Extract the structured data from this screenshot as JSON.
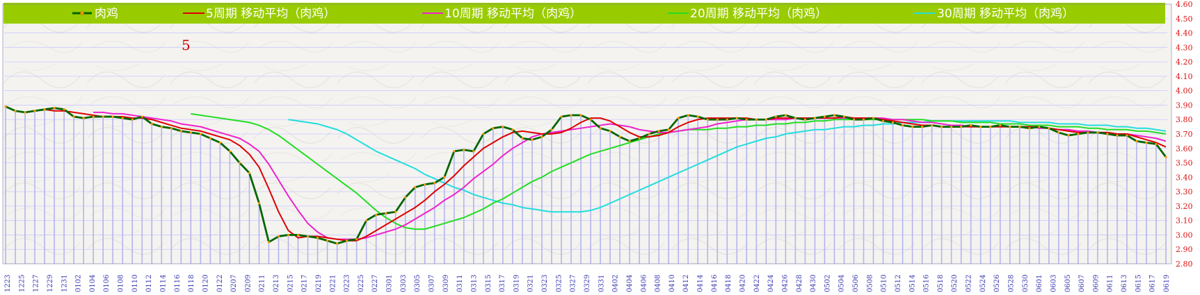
{
  "chart_data": {
    "type": "line",
    "title": "",
    "xlabel": "",
    "ylabel": "",
    "ylim": [
      2.8,
      4.6
    ],
    "yticks": [
      "2.80",
      "2.90",
      "3.00",
      "3.10",
      "3.20",
      "3.30",
      "3.40",
      "3.50",
      "3.60",
      "3.70",
      "3.80",
      "3.90",
      "4.00",
      "4.10",
      "4.20",
      "4.30",
      "4.40",
      "4.50",
      "4.60"
    ],
    "x_labels": [
      "1223",
      "1225",
      "1227",
      "1229",
      "1231",
      "0102",
      "0104",
      "0106",
      "0108",
      "0110",
      "0112",
      "0114",
      "0116",
      "0118",
      "0120",
      "0122",
      "0207",
      "0209",
      "0211",
      "0213",
      "0215",
      "0217",
      "0219",
      "0221",
      "0223",
      "0225",
      "0227",
      "0301",
      "0303",
      "0305",
      "0307",
      "0309",
      "0311",
      "0313",
      "0315",
      "0317",
      "0319",
      "0321",
      "0323",
      "0325",
      "0327",
      "0329",
      "0331",
      "0402",
      "0404",
      "0406",
      "0408",
      "0410",
      "0412",
      "0414",
      "0416",
      "0418",
      "0420",
      "0422",
      "0424",
      "0426",
      "0428",
      "0430",
      "0502",
      "0504",
      "0506",
      "0508",
      "0510",
      "0512",
      "0514",
      "0516",
      "0518",
      "0520",
      "0522",
      "0524",
      "0526",
      "0528",
      "0530",
      "0601",
      "0603",
      "0605",
      "0607",
      "0609",
      "0611",
      "0613",
      "0615",
      "0617",
      "0619"
    ],
    "annotation": "5",
    "legend_position": "top",
    "colors": {
      "legend_bg": "#99cc00",
      "price": "#006600",
      "price_marker": "#ff9900",
      "ma5": "#dd0000",
      "ma10": "#ee22cc",
      "ma20": "#22dd22",
      "ma30": "#22dddd",
      "grid": "#c9c9ff",
      "tick_y": "#dd1111",
      "tick_x": "#3a3ab0"
    },
    "series": [
      {
        "name": "肉鸡",
        "key": "price",
        "values": [
          3.89,
          3.86,
          3.85,
          3.86,
          3.87,
          3.88,
          3.87,
          3.82,
          3.81,
          3.82,
          3.82,
          3.82,
          3.81,
          3.8,
          3.82,
          3.77,
          3.75,
          3.74,
          3.72,
          3.71,
          3.7,
          3.67,
          3.64,
          3.58,
          3.5,
          3.43,
          3.22,
          2.95,
          2.99,
          3.0,
          3.0,
          2.99,
          2.98,
          2.96,
          2.94,
          2.96,
          2.97,
          3.1,
          3.14,
          3.15,
          3.16,
          3.26,
          3.33,
          3.35,
          3.36,
          3.4,
          3.58,
          3.59,
          3.58,
          3.7,
          3.74,
          3.75,
          3.73,
          3.67,
          3.66,
          3.68,
          3.73,
          3.82,
          3.83,
          3.83,
          3.8,
          3.74,
          3.72,
          3.68,
          3.65,
          3.67,
          3.7,
          3.72,
          3.73,
          3.81,
          3.83,
          3.82,
          3.8,
          3.8,
          3.8,
          3.81,
          3.8,
          3.8,
          3.8,
          3.82,
          3.83,
          3.81,
          3.8,
          3.81,
          3.82,
          3.83,
          3.82,
          3.8,
          3.8,
          3.81,
          3.79,
          3.78,
          3.76,
          3.75,
          3.75,
          3.76,
          3.75,
          3.75,
          3.75,
          3.76,
          3.75,
          3.75,
          3.76,
          3.75,
          3.75,
          3.74,
          3.75,
          3.74,
          3.71,
          3.69,
          3.7,
          3.71,
          3.71,
          3.7,
          3.69,
          3.69,
          3.65,
          3.64,
          3.63,
          3.54
        ]
      },
      {
        "name": "5周期 移动平均（肉鸡）",
        "key": "ma5",
        "values": [
          null,
          null,
          null,
          null,
          3.87,
          3.86,
          3.86,
          3.85,
          3.84,
          3.83,
          3.82,
          3.82,
          3.82,
          3.81,
          3.81,
          3.8,
          3.78,
          3.76,
          3.74,
          3.73,
          3.72,
          3.7,
          3.68,
          3.66,
          3.62,
          3.56,
          3.47,
          3.32,
          3.16,
          3.03,
          2.98,
          2.99,
          2.99,
          2.98,
          2.97,
          2.96,
          2.96,
          2.99,
          3.03,
          3.07,
          3.11,
          3.15,
          3.19,
          3.24,
          3.3,
          3.35,
          3.41,
          3.48,
          3.54,
          3.6,
          3.64,
          3.68,
          3.71,
          3.72,
          3.71,
          3.7,
          3.7,
          3.71,
          3.74,
          3.78,
          3.81,
          3.81,
          3.79,
          3.75,
          3.71,
          3.68,
          3.68,
          3.69,
          3.71,
          3.75,
          3.78,
          3.8,
          3.81,
          3.81,
          3.81,
          3.81,
          3.81,
          3.8,
          3.8,
          3.81,
          3.81,
          3.81,
          3.81,
          3.81,
          3.81,
          3.81,
          3.82,
          3.81,
          3.81,
          3.81,
          3.8,
          3.79,
          3.78,
          3.77,
          3.76,
          3.76,
          3.75,
          3.75,
          3.75,
          3.75,
          3.75,
          3.75,
          3.75,
          3.75,
          3.75,
          3.75,
          3.75,
          3.74,
          3.73,
          3.72,
          3.71,
          3.71,
          3.71,
          3.71,
          3.7,
          3.7,
          3.68,
          3.66,
          3.64,
          3.61
        ]
      },
      {
        "name": "10周期 移动平均（肉鸡）",
        "key": "ma10",
        "values": [
          null,
          null,
          null,
          null,
          null,
          null,
          null,
          null,
          null,
          3.85,
          3.85,
          3.84,
          3.84,
          3.83,
          3.82,
          3.81,
          3.8,
          3.79,
          3.77,
          3.76,
          3.75,
          3.73,
          3.71,
          3.69,
          3.67,
          3.63,
          3.58,
          3.49,
          3.38,
          3.27,
          3.17,
          3.08,
          3.02,
          2.98,
          2.97,
          2.97,
          2.97,
          2.98,
          3.0,
          3.02,
          3.04,
          3.07,
          3.11,
          3.15,
          3.19,
          3.24,
          3.28,
          3.33,
          3.39,
          3.44,
          3.49,
          3.55,
          3.6,
          3.64,
          3.68,
          3.7,
          3.71,
          3.72,
          3.73,
          3.74,
          3.75,
          3.76,
          3.77,
          3.76,
          3.75,
          3.73,
          3.72,
          3.71,
          3.71,
          3.72,
          3.73,
          3.74,
          3.75,
          3.77,
          3.78,
          3.79,
          3.8,
          3.8,
          3.8,
          3.8,
          3.8,
          3.81,
          3.81,
          3.81,
          3.81,
          3.81,
          3.81,
          3.81,
          3.81,
          3.81,
          3.81,
          3.8,
          3.8,
          3.79,
          3.78,
          3.78,
          3.77,
          3.76,
          3.76,
          3.75,
          3.75,
          3.75,
          3.75,
          3.75,
          3.75,
          3.75,
          3.74,
          3.74,
          3.73,
          3.73,
          3.72,
          3.72,
          3.71,
          3.71,
          3.7,
          3.7,
          3.69,
          3.68,
          3.67,
          3.65
        ]
      },
      {
        "name": "20周期 移动平均（肉鸡）",
        "key": "ma20",
        "values": [
          null,
          null,
          null,
          null,
          null,
          null,
          null,
          null,
          null,
          null,
          null,
          null,
          null,
          null,
          null,
          null,
          null,
          null,
          null,
          3.84,
          3.83,
          3.82,
          3.81,
          3.8,
          3.79,
          3.78,
          3.76,
          3.73,
          3.69,
          3.64,
          3.59,
          3.54,
          3.49,
          3.44,
          3.39,
          3.34,
          3.29,
          3.23,
          3.17,
          3.12,
          3.08,
          3.05,
          3.04,
          3.04,
          3.06,
          3.08,
          3.1,
          3.12,
          3.15,
          3.18,
          3.22,
          3.25,
          3.29,
          3.33,
          3.37,
          3.4,
          3.44,
          3.47,
          3.5,
          3.53,
          3.56,
          3.58,
          3.6,
          3.62,
          3.64,
          3.66,
          3.68,
          3.7,
          3.71,
          3.72,
          3.73,
          3.73,
          3.73,
          3.74,
          3.74,
          3.75,
          3.75,
          3.76,
          3.76,
          3.77,
          3.77,
          3.78,
          3.78,
          3.79,
          3.79,
          3.8,
          3.8,
          3.8,
          3.8,
          3.8,
          3.8,
          3.8,
          3.8,
          3.8,
          3.8,
          3.79,
          3.79,
          3.79,
          3.78,
          3.78,
          3.78,
          3.78,
          3.77,
          3.77,
          3.77,
          3.76,
          3.76,
          3.76,
          3.75,
          3.75,
          3.75,
          3.74,
          3.74,
          3.73,
          3.73,
          3.73,
          3.72,
          3.72,
          3.71,
          3.7
        ]
      },
      {
        "name": "30周期 移动平均（肉鸡）",
        "key": "ma30",
        "values": [
          null,
          null,
          null,
          null,
          null,
          null,
          null,
          null,
          null,
          null,
          null,
          null,
          null,
          null,
          null,
          null,
          null,
          null,
          null,
          null,
          null,
          null,
          null,
          null,
          null,
          null,
          null,
          null,
          null,
          3.8,
          3.79,
          3.78,
          3.77,
          3.75,
          3.73,
          3.7,
          3.66,
          3.62,
          3.58,
          3.55,
          3.52,
          3.49,
          3.46,
          3.42,
          3.39,
          3.36,
          3.33,
          3.31,
          3.28,
          3.26,
          3.24,
          3.22,
          3.21,
          3.19,
          3.18,
          3.17,
          3.16,
          3.16,
          3.16,
          3.16,
          3.17,
          3.19,
          3.22,
          3.25,
          3.28,
          3.31,
          3.34,
          3.37,
          3.4,
          3.43,
          3.46,
          3.49,
          3.52,
          3.55,
          3.58,
          3.61,
          3.63,
          3.65,
          3.67,
          3.68,
          3.7,
          3.71,
          3.72,
          3.73,
          3.73,
          3.74,
          3.75,
          3.75,
          3.76,
          3.76,
          3.77,
          3.77,
          3.78,
          3.78,
          3.78,
          3.79,
          3.79,
          3.79,
          3.79,
          3.79,
          3.79,
          3.79,
          3.79,
          3.79,
          3.78,
          3.78,
          3.78,
          3.78,
          3.77,
          3.77,
          3.77,
          3.76,
          3.76,
          3.76,
          3.75,
          3.75,
          3.74,
          3.74,
          3.73,
          3.72
        ]
      }
    ]
  }
}
